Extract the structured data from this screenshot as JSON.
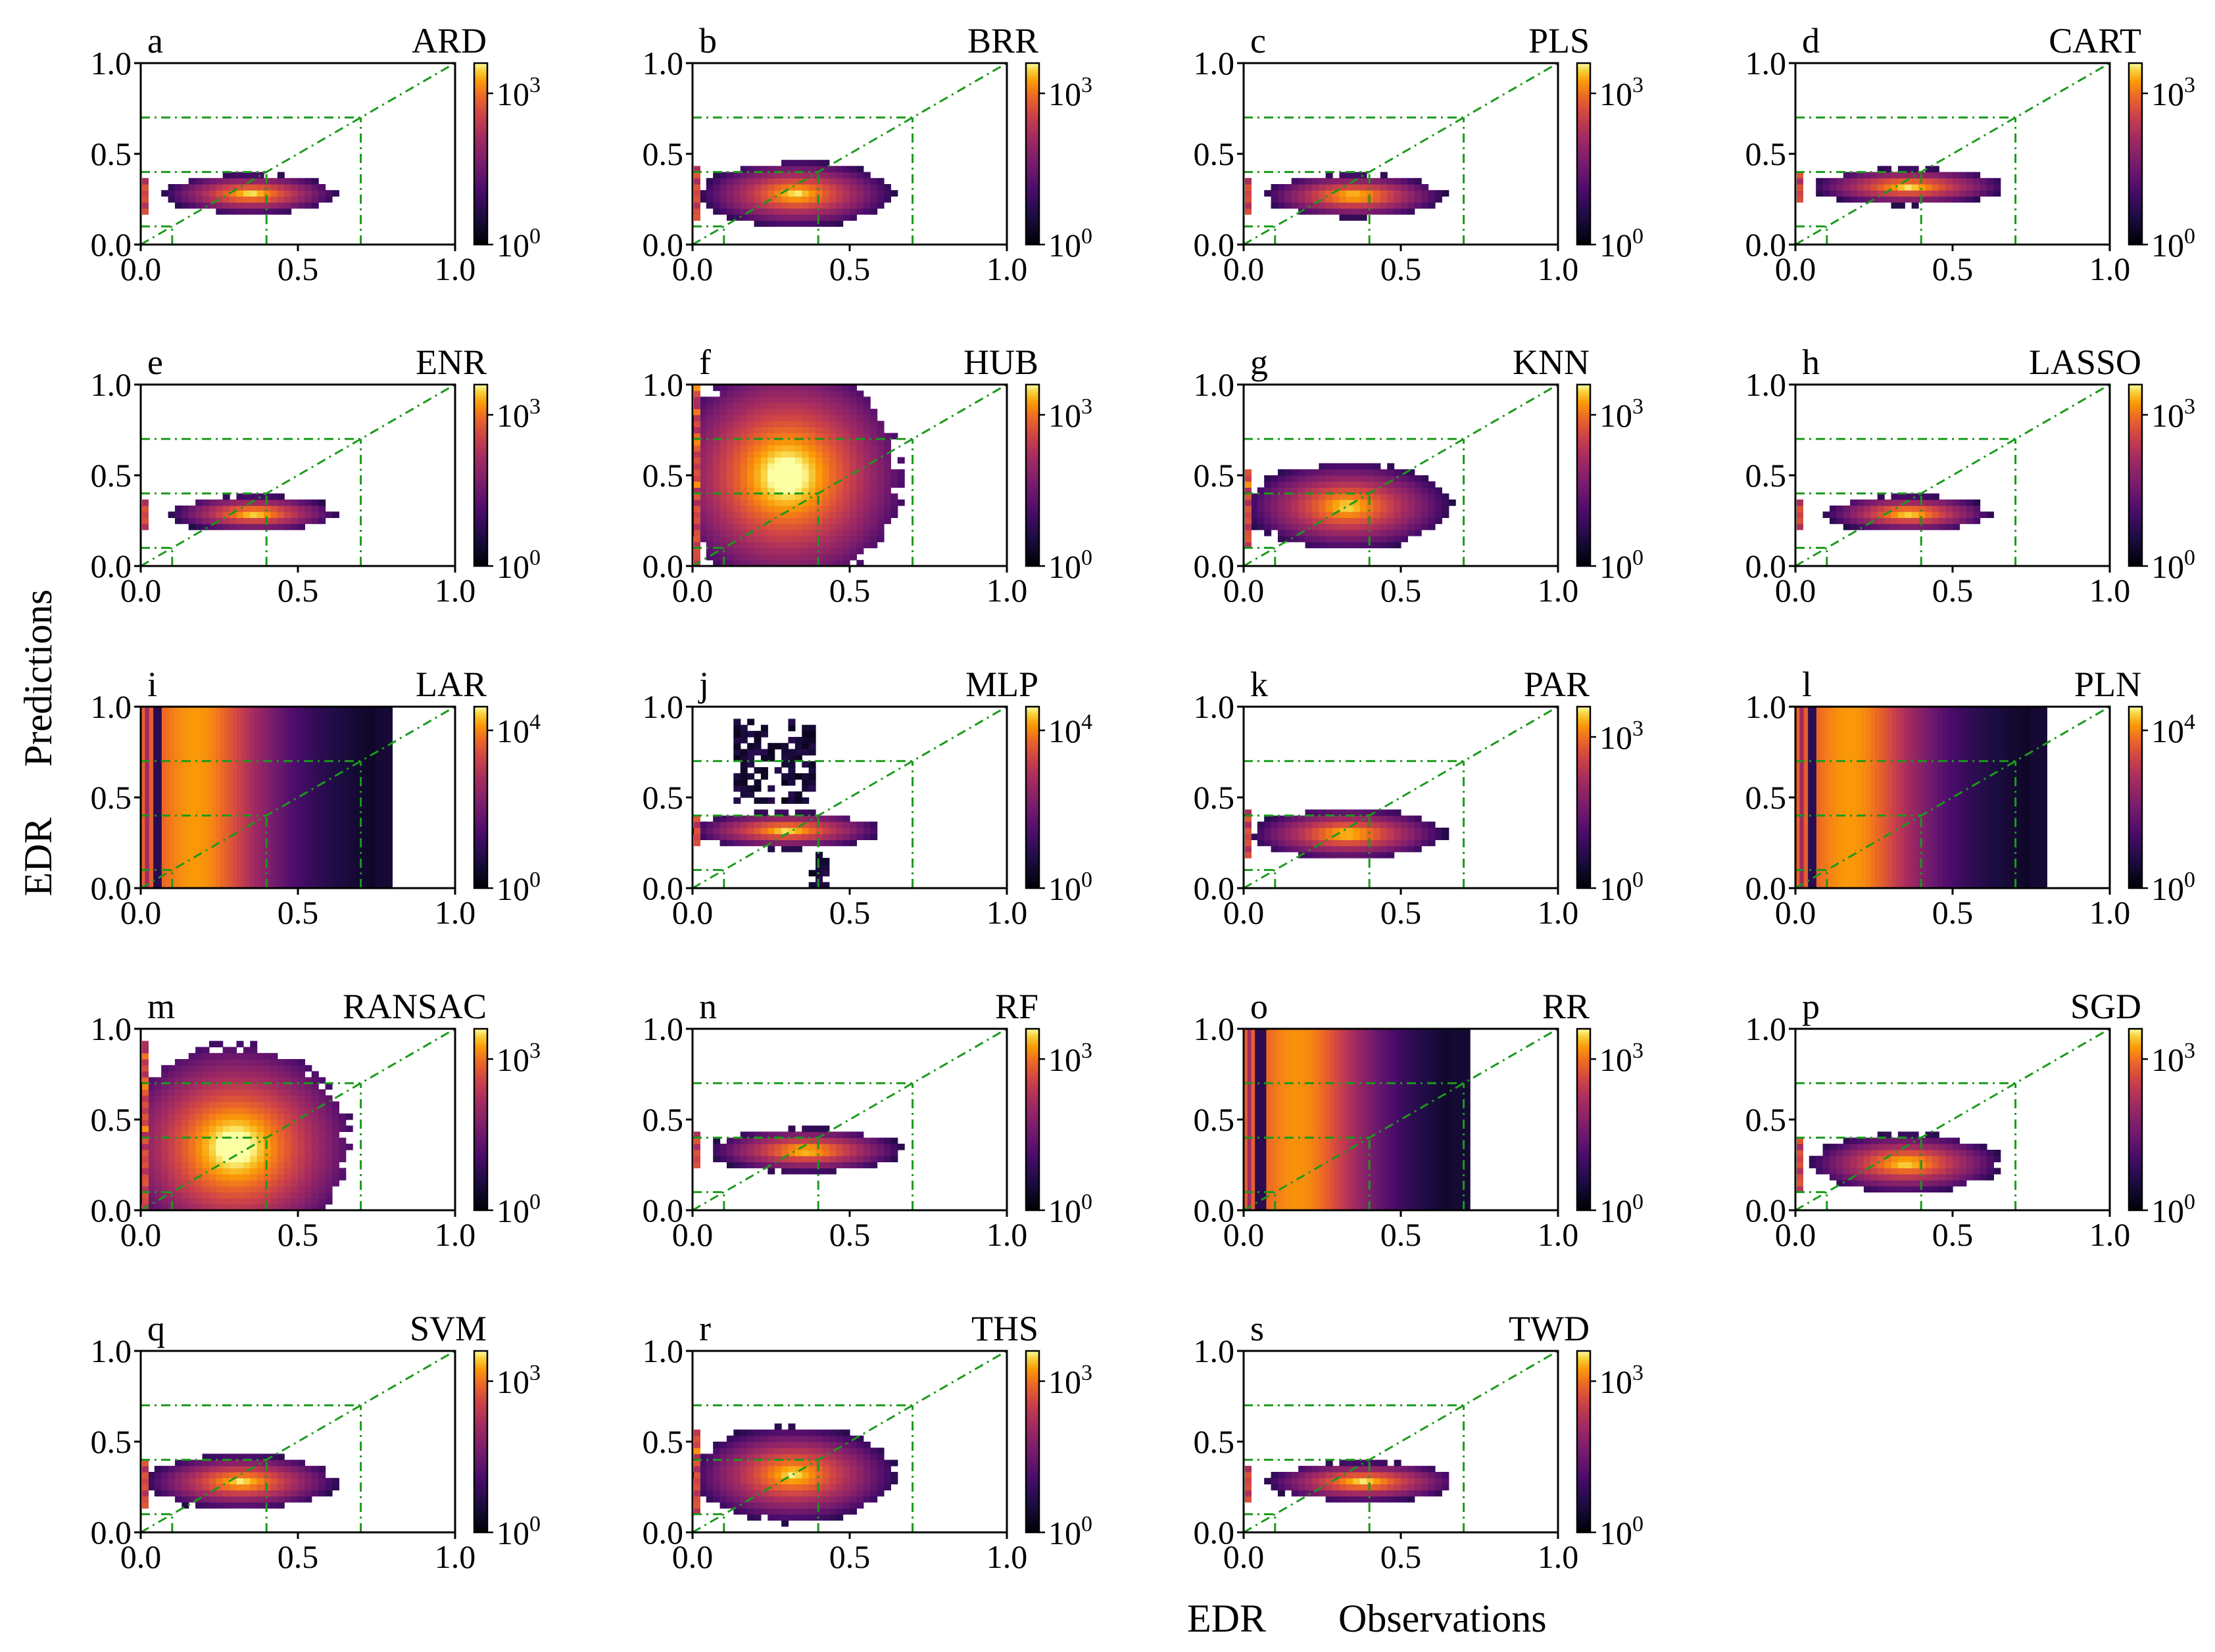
{
  "figure": {
    "ylabel_parts": [
      "EDR",
      "Predictions"
    ],
    "xlabel_parts": [
      "EDR",
      "Observations"
    ]
  },
  "chart_data": [
    {
      "type": "heatmap",
      "letter": "a",
      "title": "ARD",
      "style": "blob",
      "center_x": 0.35,
      "center_y": 0.28,
      "spread_x": 0.27,
      "spread_y": 0.11,
      "xlim": [
        0,
        1
      ],
      "ylim": [
        0,
        1
      ],
      "xticks": [
        "0.0",
        "0.5",
        "1.0"
      ],
      "yticks": [
        "0.0",
        "0.5",
        "1.0"
      ],
      "cbar_ticks": [
        "10",
        "10"
      ],
      "cbar_exps": [
        "0",
        "3"
      ],
      "cbar_max_exp": 3,
      "ref_lines": [
        0.1,
        0.4,
        0.7
      ]
    },
    {
      "type": "heatmap",
      "letter": "b",
      "title": "BRR",
      "style": "blob",
      "center_x": 0.33,
      "center_y": 0.28,
      "spread_x": 0.3,
      "spread_y": 0.18,
      "xlim": [
        0,
        1
      ],
      "ylim": [
        0,
        1
      ],
      "xticks": [
        "0.0",
        "0.5",
        "1.0"
      ],
      "yticks": [
        "0.0",
        "0.5",
        "1.0"
      ],
      "cbar_ticks": [
        "10",
        "10"
      ],
      "cbar_exps": [
        "0",
        "3"
      ],
      "cbar_max_exp": 3,
      "ref_lines": [
        0.1,
        0.4,
        0.7
      ]
    },
    {
      "type": "heatmap",
      "letter": "c",
      "title": "PLS",
      "style": "blob",
      "center_x": 0.35,
      "center_y": 0.27,
      "spread_x": 0.28,
      "spread_y": 0.12,
      "xlim": [
        0,
        1
      ],
      "ylim": [
        0,
        1
      ],
      "xticks": [
        "0.0",
        "0.5",
        "1.0"
      ],
      "yticks": [
        "0.0",
        "0.5",
        "1.0"
      ],
      "cbar_ticks": [
        "10",
        "10"
      ],
      "cbar_exps": [
        "0",
        "3"
      ],
      "cbar_max_exp": 3,
      "ref_lines": [
        0.1,
        0.4,
        0.7
      ]
    },
    {
      "type": "heatmap",
      "letter": "d",
      "title": "CART",
      "style": "blob",
      "center_x": 0.36,
      "center_y": 0.32,
      "spread_x": 0.3,
      "spread_y": 0.1,
      "xlim": [
        0,
        1
      ],
      "ylim": [
        0,
        1
      ],
      "xticks": [
        "0.0",
        "0.5",
        "1.0"
      ],
      "yticks": [
        "0.0",
        "0.5",
        "1.0"
      ],
      "cbar_ticks": [
        "10",
        "10"
      ],
      "cbar_exps": [
        "0",
        "3"
      ],
      "cbar_max_exp": 3,
      "ref_lines": [
        0.1,
        0.4,
        0.7
      ]
    },
    {
      "type": "heatmap",
      "letter": "e",
      "title": "ENR",
      "style": "blob",
      "center_x": 0.36,
      "center_y": 0.29,
      "spread_x": 0.26,
      "spread_y": 0.1,
      "xlim": [
        0,
        1
      ],
      "ylim": [
        0,
        1
      ],
      "xticks": [
        "0.0",
        "0.5",
        "1.0"
      ],
      "yticks": [
        "0.0",
        "0.5",
        "1.0"
      ],
      "cbar_ticks": [
        "10",
        "10"
      ],
      "cbar_exps": [
        "0",
        "3"
      ],
      "cbar_max_exp": 3,
      "ref_lines": [
        0.1,
        0.4,
        0.7
      ]
    },
    {
      "type": "heatmap",
      "letter": "f",
      "title": "HUB",
      "style": "wide",
      "center_x": 0.3,
      "center_y": 0.5,
      "spread_x": 0.36,
      "spread_y": 0.6,
      "xlim": [
        0,
        1
      ],
      "ylim": [
        0,
        1
      ],
      "xticks": [
        "0.0",
        "0.5",
        "1.0"
      ],
      "yticks": [
        "0.0",
        "0.5",
        "1.0"
      ],
      "cbar_ticks": [
        "10",
        "10"
      ],
      "cbar_exps": [
        "0",
        "3"
      ],
      "cbar_max_exp": 3,
      "ref_lines": [
        0.1,
        0.4,
        0.7
      ]
    },
    {
      "type": "heatmap",
      "letter": "g",
      "title": "KNN",
      "style": "blob",
      "center_x": 0.33,
      "center_y": 0.33,
      "spread_x": 0.32,
      "spread_y": 0.24,
      "xlim": [
        0,
        1
      ],
      "ylim": [
        0,
        1
      ],
      "xticks": [
        "0.0",
        "0.5",
        "1.0"
      ],
      "yticks": [
        "0.0",
        "0.5",
        "1.0"
      ],
      "cbar_ticks": [
        "10",
        "10"
      ],
      "cbar_exps": [
        "0",
        "3"
      ],
      "cbar_max_exp": 3,
      "ref_lines": [
        0.1,
        0.4,
        0.7
      ]
    },
    {
      "type": "heatmap",
      "letter": "h",
      "title": "LASSO",
      "style": "blob",
      "center_x": 0.36,
      "center_y": 0.29,
      "spread_x": 0.26,
      "spread_y": 0.1,
      "xlim": [
        0,
        1
      ],
      "ylim": [
        0,
        1
      ],
      "xticks": [
        "0.0",
        "0.5",
        "1.0"
      ],
      "yticks": [
        "0.0",
        "0.5",
        "1.0"
      ],
      "cbar_ticks": [
        "10",
        "10"
      ],
      "cbar_exps": [
        "0",
        "3"
      ],
      "cbar_max_exp": 3,
      "ref_lines": [
        0.1,
        0.4,
        0.7
      ]
    },
    {
      "type": "heatmap",
      "letter": "i",
      "title": "LAR",
      "style": "vband",
      "band_max_x": 0.8,
      "center_x": 0.2,
      "xlim": [
        0,
        1
      ],
      "ylim": [
        0,
        1
      ],
      "xticks": [
        "0.0",
        "0.5",
        "1.0"
      ],
      "yticks": [
        "0.0",
        "0.5",
        "1.0"
      ],
      "cbar_ticks": [
        "10",
        "10"
      ],
      "cbar_exps": [
        "0",
        "4"
      ],
      "cbar_max_exp": 4,
      "ref_lines": [
        0.1,
        0.4,
        0.7
      ]
    },
    {
      "type": "heatmap",
      "letter": "j",
      "title": "MLP",
      "style": "mlp",
      "center_x": 0.3,
      "center_y": 0.32,
      "spread_x": 0.3,
      "spread_y": 0.1,
      "xlim": [
        0,
        1
      ],
      "ylim": [
        0,
        1
      ],
      "xticks": [
        "0.0",
        "0.5",
        "1.0"
      ],
      "yticks": [
        "0.0",
        "0.5",
        "1.0"
      ],
      "cbar_ticks": [
        "10",
        "10"
      ],
      "cbar_exps": [
        "0",
        "4"
      ],
      "cbar_max_exp": 4,
      "ref_lines": [
        0.1,
        0.4,
        0.7
      ]
    },
    {
      "type": "heatmap",
      "letter": "k",
      "title": "PAR",
      "style": "blob",
      "center_x": 0.33,
      "center_y": 0.3,
      "spread_x": 0.3,
      "spread_y": 0.14,
      "xlim": [
        0,
        1
      ],
      "ylim": [
        0,
        1
      ],
      "xticks": [
        "0.0",
        "0.5",
        "1.0"
      ],
      "yticks": [
        "0.0",
        "0.5",
        "1.0"
      ],
      "cbar_ticks": [
        "10",
        "10"
      ],
      "cbar_exps": [
        "0",
        "3"
      ],
      "cbar_max_exp": 3,
      "ref_lines": [
        0.1,
        0.4,
        0.7
      ]
    },
    {
      "type": "heatmap",
      "letter": "l",
      "title": "PLN",
      "style": "vband",
      "band_max_x": 0.8,
      "center_x": 0.2,
      "xlim": [
        0,
        1
      ],
      "ylim": [
        0,
        1
      ],
      "xticks": [
        "0.0",
        "0.5",
        "1.0"
      ],
      "yticks": [
        "0.0",
        "0.5",
        "1.0"
      ],
      "cbar_ticks": [
        "10",
        "10"
      ],
      "cbar_exps": [
        "0",
        "4"
      ],
      "cbar_max_exp": 4,
      "ref_lines": [
        0.1,
        0.4,
        0.7
      ]
    },
    {
      "type": "heatmap",
      "letter": "m",
      "title": "RANSAC",
      "style": "wide",
      "center_x": 0.3,
      "center_y": 0.35,
      "spread_x": 0.36,
      "spread_y": 0.55,
      "xlim": [
        0,
        1
      ],
      "ylim": [
        0,
        1
      ],
      "xticks": [
        "0.0",
        "0.5",
        "1.0"
      ],
      "yticks": [
        "0.0",
        "0.5",
        "1.0"
      ],
      "cbar_ticks": [
        "10",
        "10"
      ],
      "cbar_exps": [
        "0",
        "3"
      ],
      "cbar_max_exp": 3,
      "ref_lines": [
        0.1,
        0.4,
        0.7
      ]
    },
    {
      "type": "heatmap",
      "letter": "n",
      "title": "RF",
      "style": "blob",
      "center_x": 0.36,
      "center_y": 0.33,
      "spread_x": 0.3,
      "spread_y": 0.12,
      "xlim": [
        0,
        1
      ],
      "ylim": [
        0,
        1
      ],
      "xticks": [
        "0.0",
        "0.5",
        "1.0"
      ],
      "yticks": [
        "0.0",
        "0.5",
        "1.0"
      ],
      "cbar_ticks": [
        "10",
        "10"
      ],
      "cbar_exps": [
        "0",
        "3"
      ],
      "cbar_max_exp": 3,
      "ref_lines": [
        0.1,
        0.4,
        0.7
      ]
    },
    {
      "type": "heatmap",
      "letter": "o",
      "title": "RR",
      "style": "vband",
      "band_max_x": 0.72,
      "center_x": 0.2,
      "xlim": [
        0,
        1
      ],
      "ylim": [
        0,
        1
      ],
      "xticks": [
        "0.0",
        "0.5",
        "1.0"
      ],
      "yticks": [
        "0.0",
        "0.5",
        "1.0"
      ],
      "cbar_ticks": [
        "10",
        "10"
      ],
      "cbar_exps": [
        "0",
        "3"
      ],
      "cbar_max_exp": 3,
      "ref_lines": [
        0.1,
        0.4,
        0.7
      ]
    },
    {
      "type": "heatmap",
      "letter": "p",
      "title": "SGD",
      "style": "blob",
      "center_x": 0.35,
      "center_y": 0.26,
      "spread_x": 0.3,
      "spread_y": 0.16,
      "xlim": [
        0,
        1
      ],
      "ylim": [
        0,
        1
      ],
      "xticks": [
        "0.0",
        "0.5",
        "1.0"
      ],
      "yticks": [
        "0.0",
        "0.5",
        "1.0"
      ],
      "cbar_ticks": [
        "10",
        "10"
      ],
      "cbar_exps": [
        "0",
        "3"
      ],
      "cbar_max_exp": 3,
      "ref_lines": [
        0.1,
        0.4,
        0.7
      ]
    },
    {
      "type": "heatmap",
      "letter": "q",
      "title": "SVM",
      "style": "blob",
      "center_x": 0.32,
      "center_y": 0.28,
      "spread_x": 0.3,
      "spread_y": 0.15,
      "xlim": [
        0,
        1
      ],
      "ylim": [
        0,
        1
      ],
      "xticks": [
        "0.0",
        "0.5",
        "1.0"
      ],
      "yticks": [
        "0.0",
        "0.5",
        "1.0"
      ],
      "cbar_ticks": [
        "10",
        "10"
      ],
      "cbar_exps": [
        "0",
        "3"
      ],
      "cbar_max_exp": 3,
      "ref_lines": [
        0.1,
        0.4,
        0.7
      ]
    },
    {
      "type": "heatmap",
      "letter": "r",
      "title": "THS",
      "style": "blob",
      "center_x": 0.32,
      "center_y": 0.32,
      "spread_x": 0.32,
      "spread_y": 0.26,
      "xlim": [
        0,
        1
      ],
      "ylim": [
        0,
        1
      ],
      "xticks": [
        "0.0",
        "0.5",
        "1.0"
      ],
      "yticks": [
        "0.0",
        "0.5",
        "1.0"
      ],
      "cbar_ticks": [
        "10",
        "10"
      ],
      "cbar_exps": [
        "0",
        "3"
      ],
      "cbar_max_exp": 3,
      "ref_lines": [
        0.1,
        0.4,
        0.7
      ]
    },
    {
      "type": "heatmap",
      "letter": "s",
      "title": "TWD",
      "style": "blob",
      "center_x": 0.38,
      "center_y": 0.28,
      "spread_x": 0.3,
      "spread_y": 0.11,
      "xlim": [
        0,
        1
      ],
      "ylim": [
        0,
        1
      ],
      "xticks": [
        "0.0",
        "0.5",
        "1.0"
      ],
      "yticks": [
        "0.0",
        "0.5",
        "1.0"
      ],
      "cbar_ticks": [
        "10",
        "10"
      ],
      "cbar_exps": [
        "0",
        "3"
      ],
      "cbar_max_exp": 3,
      "ref_lines": [
        0.1,
        0.4,
        0.7
      ]
    }
  ],
  "colors": {
    "ref_line": "#1a9a1a",
    "axis": "#000000",
    "background": "#ffffff"
  }
}
